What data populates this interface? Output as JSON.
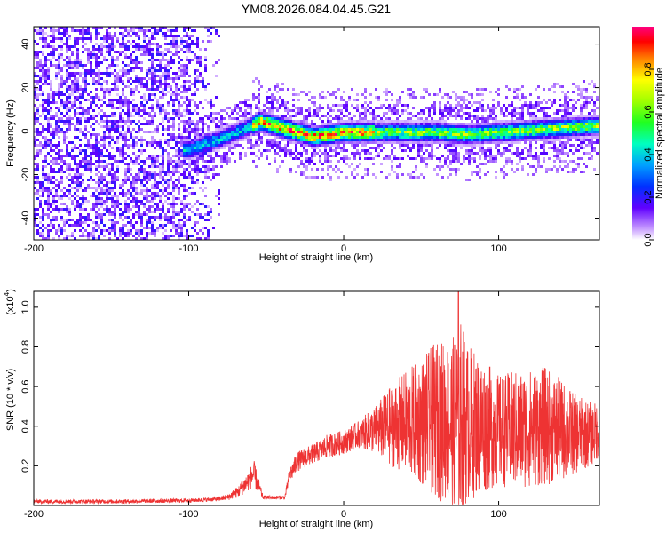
{
  "title": "YM08.2026.084.04.45.G21",
  "chart_data": [
    {
      "type": "heatmap",
      "title": "YM08.2026.084.04.45.G21",
      "xlabel": "Height of straight line (km)",
      "ylabel": "Frequency (Hz)",
      "xlim": [
        -200,
        165
      ],
      "ylim": [
        -50,
        48
      ],
      "x_ticks": [
        -200,
        -100,
        0,
        100
      ],
      "y_ticks": [
        -40,
        -20,
        0,
        20,
        40
      ],
      "colorbar": {
        "label": "Normalized spectral amplitude",
        "range": [
          0,
          1
        ],
        "ticks": [
          0.0,
          0.2,
          0.4,
          0.6,
          0.8
        ],
        "tick_labels": [
          "0.0",
          "0.2",
          "0.4",
          "0.6",
          "0.8"
        ],
        "colors": [
          "#ffffff",
          "#b070ff",
          "#4000ff",
          "#0044ff",
          "#00c8ff",
          "#00ff80",
          "#80ff00",
          "#ffff00",
          "#ff8000",
          "#ff0000",
          "#ff0080"
        ]
      },
      "description_series": {
        "name": "dominant frequency trace",
        "x": [
          -100,
          -90,
          -80,
          -70,
          -60,
          -55,
          -50,
          -40,
          -30,
          -20,
          -10,
          0,
          10,
          20,
          40,
          60,
          80,
          100,
          120,
          140,
          160
        ],
        "y": [
          -8,
          -5,
          -3,
          0,
          3,
          5,
          4,
          2,
          0,
          -2,
          -1,
          0,
          0,
          0,
          0,
          0,
          -1,
          0,
          1,
          2,
          3
        ],
        "band_halfwidth_hz": 6,
        "peak_amplitude": 0.95
      },
      "noise_region_x": [
        -200,
        -80
      ]
    },
    {
      "type": "line",
      "xlabel": "Height of straight line (km)",
      "ylabel": "SNR (10 * v/v)",
      "y_scale_label": "(x10",
      "y_scale_exp": "4",
      "xlim": [
        -200,
        165
      ],
      "ylim": [
        0,
        1.08
      ],
      "x_ticks": [
        -200,
        -100,
        0,
        100
      ],
      "y_ticks": [
        0.2,
        0.4,
        0.6,
        0.8,
        1.0
      ],
      "y_tick_labels": [
        "0.2",
        "0.4",
        "0.6",
        "0.8",
        "1.0"
      ],
      "series": [
        {
          "name": "SNR",
          "color": "#ee3333",
          "envelope_x": [
            -200,
            -150,
            -100,
            -85,
            -75,
            -68,
            -62,
            -58,
            -55,
            -52,
            -38,
            -35,
            -30,
            -20,
            -10,
            0,
            10,
            20,
            30,
            40,
            50,
            60,
            70,
            75,
            80,
            90,
            100,
            110,
            120,
            130,
            140,
            150,
            160,
            165
          ],
          "envelope_mean": [
            0.02,
            0.02,
            0.025,
            0.03,
            0.04,
            0.07,
            0.12,
            0.16,
            0.1,
            0.04,
            0.04,
            0.15,
            0.22,
            0.26,
            0.3,
            0.32,
            0.36,
            0.38,
            0.4,
            0.42,
            0.42,
            0.43,
            0.42,
            0.44,
            0.42,
            0.4,
            0.38,
            0.38,
            0.39,
            0.4,
            0.38,
            0.36,
            0.36,
            0.38
          ],
          "envelope_spread": [
            0.01,
            0.01,
            0.01,
            0.01,
            0.015,
            0.03,
            0.05,
            0.07,
            0.04,
            0.01,
            0.01,
            0.04,
            0.05,
            0.05,
            0.06,
            0.06,
            0.07,
            0.12,
            0.2,
            0.26,
            0.32,
            0.4,
            0.42,
            0.52,
            0.4,
            0.34,
            0.28,
            0.3,
            0.3,
            0.3,
            0.26,
            0.2,
            0.16,
            0.14
          ],
          "peak_value": 1.08,
          "peak_x": 74
        }
      ]
    }
  ]
}
